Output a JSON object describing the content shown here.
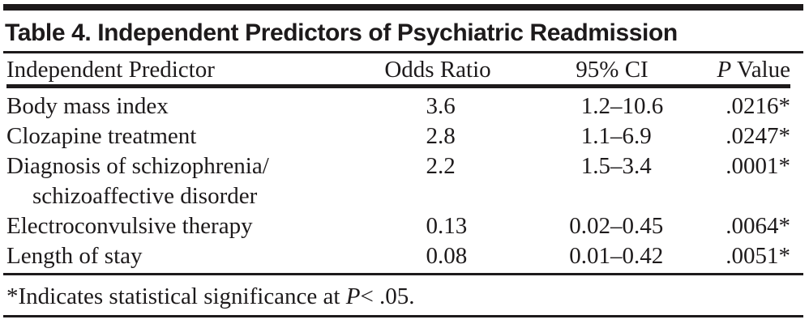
{
  "table": {
    "title": "Table 4. Independent Predictors of Psychiatric Readmission",
    "header": {
      "predictor": "Independent Predictor",
      "odds_ratio": "Odds Ratio",
      "ci": "95% CI",
      "p_italic": "P",
      "p_rest": " Value"
    },
    "rows": [
      {
        "predictor": "Body mass index",
        "predictor_line2": "",
        "odds_ratio": "3.6",
        "ci": "1.2–10.6",
        "p_value": ".0216*"
      },
      {
        "predictor": "Clozapine treatment",
        "predictor_line2": "",
        "odds_ratio": "2.8",
        "ci": "1.1–6.9",
        "p_value": ".0247*"
      },
      {
        "predictor": "Diagnosis of schizophrenia/",
        "predictor_line2": "schizoaffective disorder",
        "odds_ratio": "2.2",
        "ci": "1.5–3.4",
        "p_value": ".0001*"
      },
      {
        "predictor": "Electroconvulsive therapy",
        "predictor_line2": "",
        "odds_ratio": "0.13",
        "ci": "0.02–0.45",
        "p_value": ".0064*"
      },
      {
        "predictor": "Length of stay",
        "predictor_line2": "",
        "odds_ratio": "0.08",
        "ci": "0.01–0.42",
        "p_value": ".0051*"
      }
    ],
    "footnote": {
      "prefix": "*Indicates statistical significance at ",
      "p_symbol": "P",
      "suffix": "< .05."
    },
    "colors": {
      "text": "#1d1a1b",
      "rule": "#1d1a1b",
      "background": "#ffffff"
    }
  }
}
